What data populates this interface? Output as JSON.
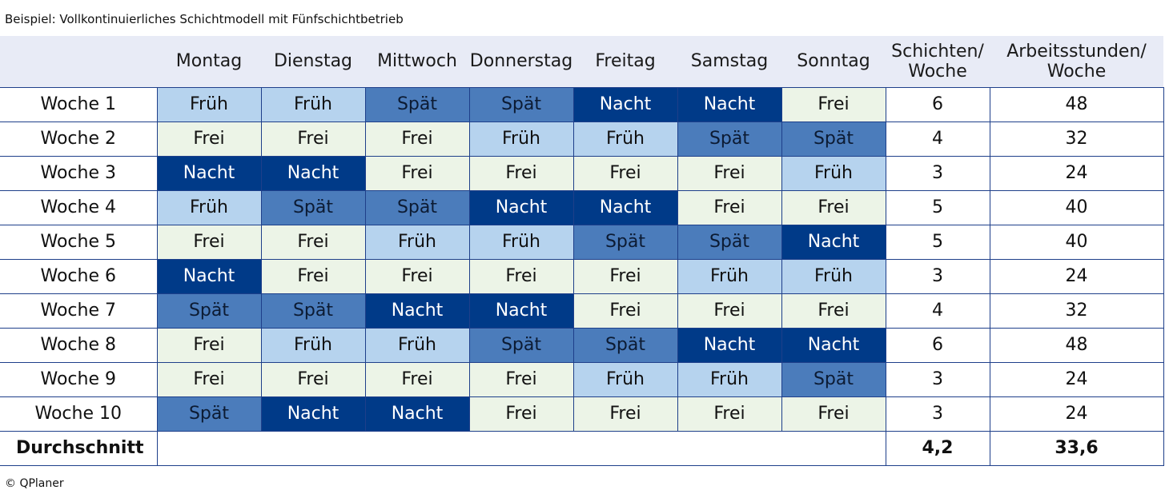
{
  "caption": "Beispiel: Vollkontinuierliches Schichtmodell mit Fünfschichtbetrieb",
  "footer": "© QPlaner",
  "colors": {
    "Frei": "#ecf4e7",
    "Früh": "#b6d3ee",
    "Spät": "#4b7cbb",
    "Nacht": "#003a88",
    "header_bg": "#e8ebf6",
    "border": "#1e3f8a"
  },
  "header": {
    "days": [
      "Montag",
      "Dienstag",
      "Mittwoch",
      "Donnerstag",
      "Freitag",
      "Samstag",
      "Sonntag"
    ],
    "shifts_line1": "Schichten/",
    "shifts_line2": "Woche",
    "hours_line1": "Arbeitsstunden/",
    "hours_line2": "Woche"
  },
  "rows": [
    {
      "label": "Woche 1",
      "cells": [
        "Früh",
        "Früh",
        "Spät",
        "Spät",
        "Nacht",
        "Nacht",
        "Frei"
      ],
      "shifts": "6",
      "hours": "48"
    },
    {
      "label": "Woche 2",
      "cells": [
        "Frei",
        "Frei",
        "Frei",
        "Früh",
        "Früh",
        "Spät",
        "Spät"
      ],
      "shifts": "4",
      "hours": "32"
    },
    {
      "label": "Woche 3",
      "cells": [
        "Nacht",
        "Nacht",
        "Frei",
        "Frei",
        "Frei",
        "Frei",
        "Früh"
      ],
      "shifts": "3",
      "hours": "24"
    },
    {
      "label": "Woche 4",
      "cells": [
        "Früh",
        "Spät",
        "Spät",
        "Nacht",
        "Nacht",
        "Frei",
        "Frei"
      ],
      "shifts": "5",
      "hours": "40"
    },
    {
      "label": "Woche 5",
      "cells": [
        "Frei",
        "Frei",
        "Früh",
        "Früh",
        "Spät",
        "Spät",
        "Nacht"
      ],
      "shifts": "5",
      "hours": "40"
    },
    {
      "label": "Woche 6",
      "cells": [
        "Nacht",
        "Frei",
        "Frei",
        "Frei",
        "Frei",
        "Früh",
        "Früh"
      ],
      "shifts": "3",
      "hours": "24"
    },
    {
      "label": "Woche 7",
      "cells": [
        "Spät",
        "Spät",
        "Nacht",
        "Nacht",
        "Frei",
        "Frei",
        "Frei"
      ],
      "shifts": "4",
      "hours": "32"
    },
    {
      "label": "Woche 8",
      "cells": [
        "Frei",
        "Früh",
        "Früh",
        "Spät",
        "Spät",
        "Nacht",
        "Nacht"
      ],
      "shifts": "6",
      "hours": "48"
    },
    {
      "label": "Woche 9",
      "cells": [
        "Frei",
        "Frei",
        "Frei",
        "Frei",
        "Früh",
        "Früh",
        "Spät"
      ],
      "shifts": "3",
      "hours": "24"
    },
    {
      "label": "Woche 10",
      "cells": [
        "Spät",
        "Nacht",
        "Nacht",
        "Frei",
        "Frei",
        "Frei",
        "Frei"
      ],
      "shifts": "3",
      "hours": "24"
    }
  ],
  "average": {
    "label": "Durchschnitt",
    "shifts": "4,2",
    "hours": "33,6"
  }
}
